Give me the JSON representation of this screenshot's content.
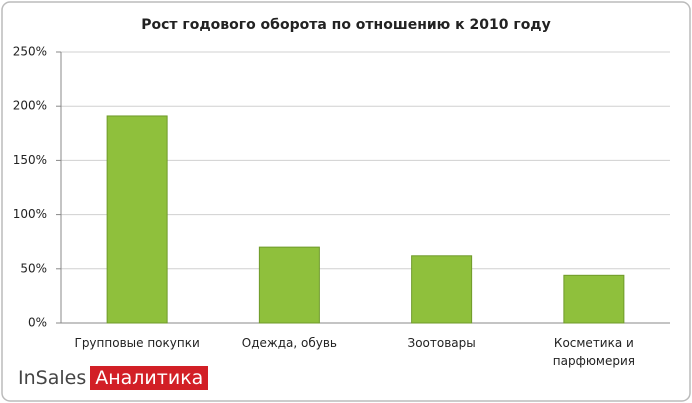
{
  "chart_data": {
    "type": "bar",
    "title": "Рост годового оборота по отношению к 2010 году",
    "categories": [
      "Групповые покупки",
      "Одежда, обувь",
      "Зоотовары",
      "Косметика и парфюмерия"
    ],
    "values": [
      191,
      70,
      62,
      44
    ],
    "color": "#8fc03c",
    "ylim": [
      0,
      250
    ],
    "yticks": [
      {
        "value": 0,
        "label": "0%"
      },
      {
        "value": 50,
        "label": "50%"
      },
      {
        "value": 100,
        "label": "100%"
      },
      {
        "value": 150,
        "label": "150%"
      },
      {
        "value": 200,
        "label": "200%"
      },
      {
        "value": 250,
        "label": "250%"
      }
    ],
    "grid": true
  },
  "logo": {
    "brand": "InSales",
    "product": "Аналитика"
  }
}
